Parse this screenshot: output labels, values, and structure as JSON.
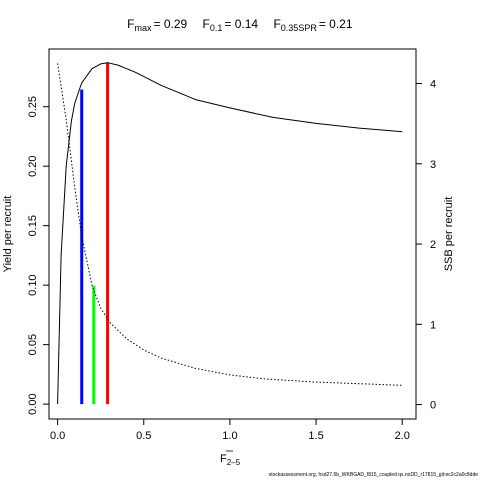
{
  "chart_data": {
    "type": "line",
    "title_parts": {
      "fmax_label": "F",
      "fmax_sub": "max",
      "fmax_value": "= 0.29",
      "f01_label": "F",
      "f01_sub": "0.1",
      "f01_value": "= 0.14",
      "f035_label": "F",
      "f035_sub": "0.35SPR",
      "f035_value": "= 0.21"
    },
    "xlabel_main": "F",
    "xlabel_sub": "2–5",
    "ylabel_left": "Yield per recruit",
    "ylabel_right": "SSB per recruit",
    "xlim": [
      0,
      2.05
    ],
    "ylim_left": [
      0,
      0.29
    ],
    "ylim_right": [
      0,
      4.3
    ],
    "x_ticks": [
      {
        "value": 0,
        "label": "0.0"
      },
      {
        "value": 0.5,
        "label": "0.5"
      },
      {
        "value": 1.0,
        "label": "1.0"
      },
      {
        "value": 1.5,
        "label": "1.5"
      },
      {
        "value": 2.0,
        "label": "2.0"
      }
    ],
    "y_ticks_left": [
      {
        "value": 0,
        "label": "0.00"
      },
      {
        "value": 0.05,
        "label": "0.05"
      },
      {
        "value": 0.1,
        "label": "0.10"
      },
      {
        "value": 0.15,
        "label": "0.15"
      },
      {
        "value": 0.2,
        "label": "0.20"
      },
      {
        "value": 0.25,
        "label": "0.25"
      }
    ],
    "y_ticks_right": [
      {
        "value": 0,
        "label": "0"
      },
      {
        "value": 1,
        "label": "1"
      },
      {
        "value": 2,
        "label": "2"
      },
      {
        "value": 3,
        "label": "3"
      },
      {
        "value": 4,
        "label": "4"
      }
    ],
    "series": [
      {
        "axis": "left",
        "color": "#000000",
        "style": "solid",
        "x": [
          0,
          0.02,
          0.05,
          0.08,
          0.1,
          0.14,
          0.2,
          0.25,
          0.29,
          0.35,
          0.45,
          0.6,
          0.8,
          1.0,
          1.25,
          1.5,
          1.75,
          2.0
        ],
        "y": [
          0.0,
          0.125,
          0.2,
          0.238,
          0.253,
          0.27,
          0.282,
          0.286,
          0.287,
          0.285,
          0.279,
          0.268,
          0.256,
          0.249,
          0.241,
          0.236,
          0.232,
          0.229
        ]
      },
      {
        "axis": "right",
        "color": "#000000",
        "style": "dotted",
        "x": [
          0,
          0.05,
          0.1,
          0.14,
          0.2,
          0.25,
          0.3,
          0.4,
          0.5,
          0.6,
          0.8,
          1.0,
          1.2,
          1.5,
          1.75,
          2.0
        ],
        "y": [
          4.25,
          3.55,
          2.7,
          2.1,
          1.48,
          1.2,
          1.03,
          0.82,
          0.68,
          0.58,
          0.45,
          0.37,
          0.32,
          0.28,
          0.26,
          0.24
        ]
      }
    ],
    "reference_lines": [
      {
        "name": "F0.1",
        "x": 0.14,
        "y_top": 0.2645,
        "color": "#0000ff"
      },
      {
        "name": "F0.35SPR",
        "x": 0.21,
        "y_top": 0.0996,
        "color": "#00ff00"
      },
      {
        "name": "Fmax",
        "x": 0.29,
        "y_top": 0.2873,
        "color": "#ff0000"
      }
    ]
  },
  "footer_text": "stockassessment.org, hsd27.6b_WKBGAD_f815_coupled.qs.noDD_r17815_git:ec2c2a0c8dde"
}
